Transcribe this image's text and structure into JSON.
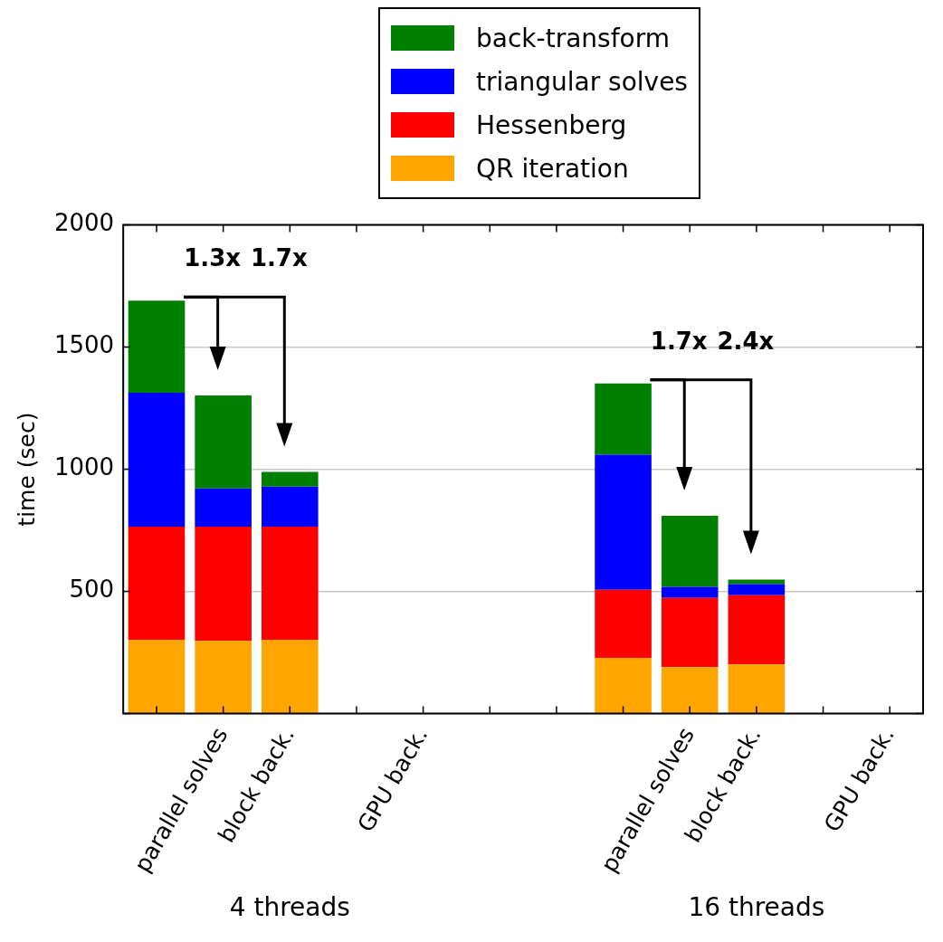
{
  "chart_data": {
    "type": "bar",
    "stacked": true,
    "ylabel": "time (sec)",
    "categories": [
      null,
      "parallel solves",
      "block back.",
      null,
      "GPU back.",
      null,
      null,
      null,
      "parallel solves",
      "block back.",
      null,
      "GPU back."
    ],
    "series": [
      {
        "name": "QR iteration",
        "color": "#ffa500",
        "values": [
          302,
          298,
          302,
          null,
          null,
          null,
          null,
          228,
          190,
          201,
          null,
          null
        ]
      },
      {
        "name": "Hessenberg",
        "color": "#ff0000",
        "values": [
          463,
          467,
          463,
          null,
          null,
          null,
          null,
          279,
          284,
          284,
          null,
          null
        ]
      },
      {
        "name": "triangular solves",
        "color": "#0000ff",
        "values": [
          548,
          157,
          164,
          null,
          null,
          null,
          null,
          553,
          45,
          45,
          null,
          null
        ]
      },
      {
        "name": "back-transform",
        "color": "#008000",
        "values": [
          377,
          380,
          60,
          null,
          null,
          null,
          null,
          291,
          291,
          19,
          null,
          null
        ]
      }
    ],
    "ylim": [
      0,
      2000
    ],
    "yticks": [
      {
        "value": 0,
        "label": null
      },
      500,
      1000,
      1500,
      2000
    ],
    "grid": "y",
    "legend": "top",
    "annotations": [
      "4 threads",
      "16 threads",
      "1.3x",
      "1.7x",
      "1.7x",
      "2.4x"
    ]
  }
}
